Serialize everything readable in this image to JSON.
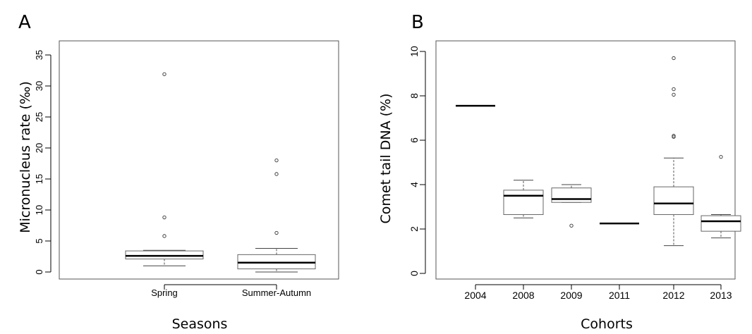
{
  "chart_data": [
    {
      "type": "box",
      "panel_label": "A",
      "xlabel": "Seasons",
      "ylabel": "Micronucleus rate (‰)",
      "ylim": [
        0,
        35
      ],
      "yticks": [
        0,
        5,
        10,
        15,
        20,
        25,
        30,
        35
      ],
      "grid": false,
      "categories": [
        "Spring",
        "Summer-Autumn"
      ],
      "boxes": [
        {
          "category": "Spring",
          "whisker_low": 1.0,
          "q1": 2.1,
          "median": 2.6,
          "q3": 3.4,
          "whisker_high": 3.5,
          "outliers": [
            5.8,
            8.8,
            31.9
          ]
        },
        {
          "category": "Summer-Autumn",
          "whisker_low": 0.0,
          "q1": 0.5,
          "median": 1.5,
          "q3": 2.8,
          "whisker_high": 3.8,
          "outliers": [
            6.3,
            15.8,
            18.0
          ]
        }
      ]
    },
    {
      "type": "box",
      "panel_label": "B",
      "xlabel": "Cohorts",
      "ylabel": "Comet tail DNA (%)",
      "ylim": [
        0,
        10
      ],
      "yticks": [
        0,
        2,
        4,
        6,
        8,
        10
      ],
      "grid": false,
      "categories": [
        "2004",
        "2008",
        "2009",
        "2011",
        "2012",
        "2013"
      ],
      "boxes": [
        {
          "category": "2004",
          "whisker_low": 7.55,
          "q1": 7.55,
          "median": 7.55,
          "q3": 7.55,
          "whisker_high": 7.55,
          "outliers": []
        },
        {
          "category": "2008",
          "whisker_low": 2.5,
          "q1": 2.65,
          "median": 3.5,
          "q3": 3.75,
          "whisker_high": 4.2,
          "outliers": []
        },
        {
          "category": "2009",
          "whisker_low": 3.2,
          "q1": 3.2,
          "median": 3.35,
          "q3": 3.85,
          "whisker_high": 4.0,
          "outliers": [
            2.15
          ]
        },
        {
          "category": "2011",
          "whisker_low": 2.25,
          "q1": 2.25,
          "median": 2.25,
          "q3": 2.25,
          "whisker_high": 2.25,
          "outliers": []
        },
        {
          "category": "2012",
          "whisker_low": 1.25,
          "q1": 2.65,
          "median": 3.15,
          "q3": 3.9,
          "whisker_high": 5.2,
          "outliers": [
            6.15,
            6.2,
            8.05,
            8.3,
            9.7
          ]
        },
        {
          "category": "2013",
          "whisker_low": 1.6,
          "q1": 1.9,
          "median": 2.35,
          "q3": 2.6,
          "whisker_high": 2.65,
          "outliers": [
            5.25
          ]
        }
      ]
    }
  ]
}
